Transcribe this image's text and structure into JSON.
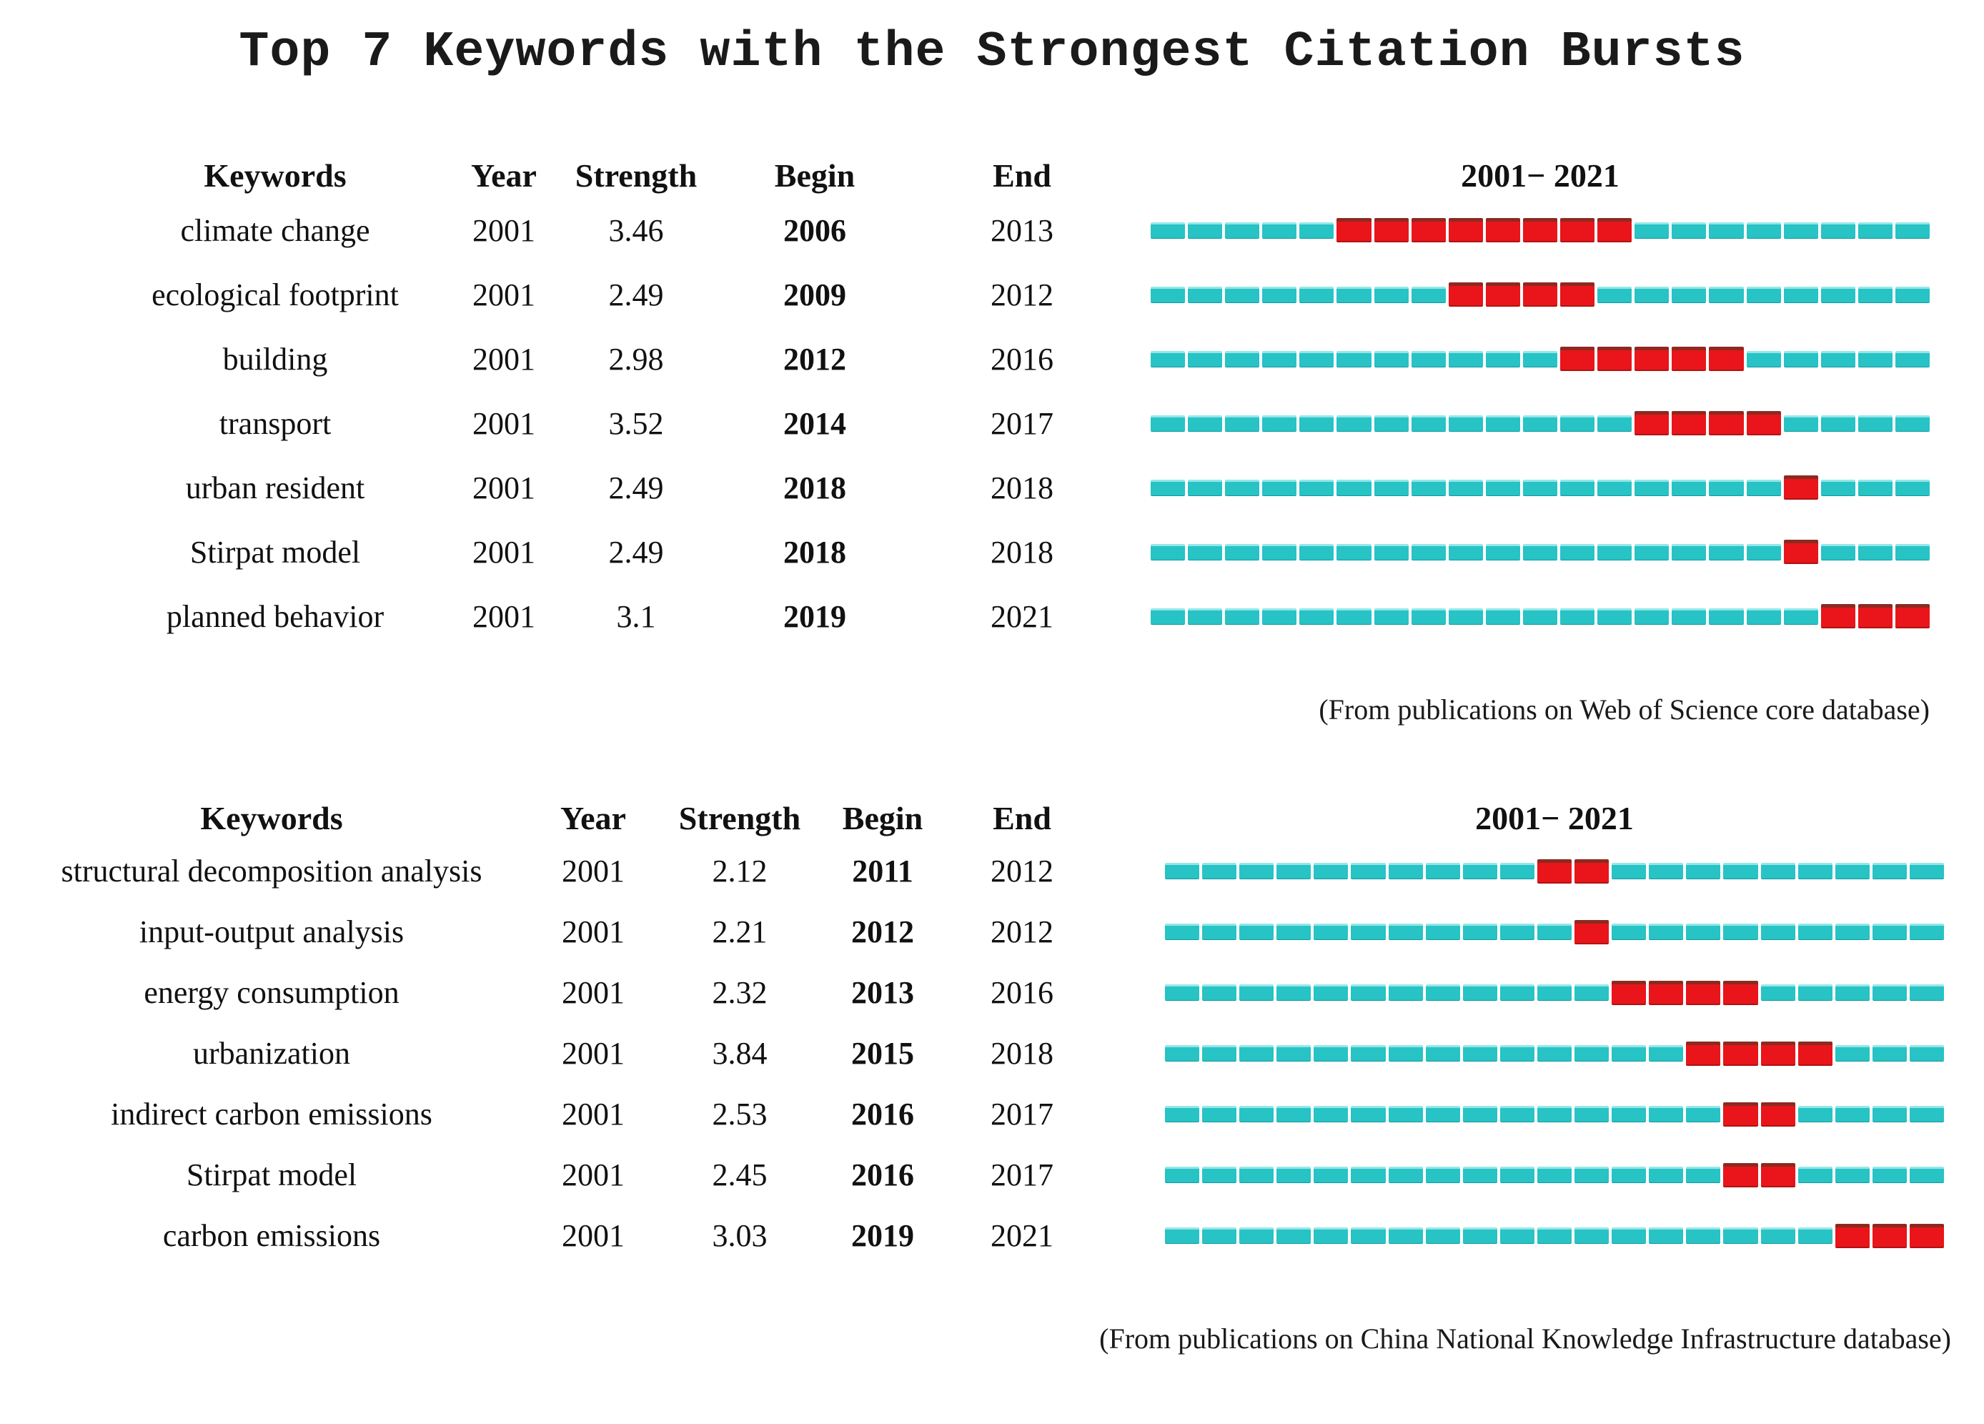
{
  "page_title": "Top 7 Keywords with the Strongest Citation Bursts",
  "colors": {
    "base_segment": "#27c3c5",
    "base_segment_highlight": "#93e7e8",
    "burst_segment": "#e9151a",
    "burst_segment_edge": "#8c2a20",
    "text": "#1a1a1a",
    "background": "#ffffff"
  },
  "chart_data": [
    {
      "type": "table",
      "name": "web-of-science-citation-bursts",
      "columns": [
        "Keywords",
        "Year",
        "Strength",
        "Begin",
        "End"
      ],
      "timeline_label": "2001− 2021",
      "timeline_start": 2001,
      "timeline_end": 2021,
      "caption": "(From publications on Web of Science core database)",
      "rows": [
        {
          "keyword": "climate change",
          "year": "2001",
          "strength": "3.46",
          "begin": "2006",
          "end": "2013"
        },
        {
          "keyword": "ecological footprint",
          "year": "2001",
          "strength": "2.49",
          "begin": "2009",
          "end": "2012"
        },
        {
          "keyword": "building",
          "year": "2001",
          "strength": "2.98",
          "begin": "2012",
          "end": "2016"
        },
        {
          "keyword": "transport",
          "year": "2001",
          "strength": "3.52",
          "begin": "2014",
          "end": "2017"
        },
        {
          "keyword": "urban resident",
          "year": "2001",
          "strength": "2.49",
          "begin": "2018",
          "end": "2018"
        },
        {
          "keyword": "Stirpat model",
          "year": "2001",
          "strength": "2.49",
          "begin": "2018",
          "end": "2018"
        },
        {
          "keyword": "planned behavior",
          "year": "2001",
          "strength": "3.1",
          "begin": "2019",
          "end": "2021"
        }
      ]
    },
    {
      "type": "table",
      "name": "cnki-citation-bursts",
      "columns": [
        "Keywords",
        "Year",
        "Strength",
        "Begin",
        "End"
      ],
      "timeline_label": "2001− 2021",
      "timeline_start": 2001,
      "timeline_end": 2021,
      "caption": "(From publications on China National Knowledge Infrastructure database)",
      "rows": [
        {
          "keyword": "structural decomposition analysis",
          "year": "2001",
          "strength": "2.12",
          "begin": "2011",
          "end": "2012"
        },
        {
          "keyword": "input-output analysis",
          "year": "2001",
          "strength": "2.21",
          "begin": "2012",
          "end": "2012"
        },
        {
          "keyword": "energy consumption",
          "year": "2001",
          "strength": "2.32",
          "begin": "2013",
          "end": "2016"
        },
        {
          "keyword": "urbanization",
          "year": "2001",
          "strength": "3.84",
          "begin": "2015",
          "end": "2018"
        },
        {
          "keyword": "indirect carbon emissions",
          "year": "2001",
          "strength": "2.53",
          "begin": "2016",
          "end": "2017"
        },
        {
          "keyword": "Stirpat model",
          "year": "2001",
          "strength": "2.45",
          "begin": "2016",
          "end": "2017"
        },
        {
          "keyword": "carbon emissions",
          "year": "2001",
          "strength": "3.03",
          "begin": "2019",
          "end": "2021"
        }
      ]
    }
  ]
}
